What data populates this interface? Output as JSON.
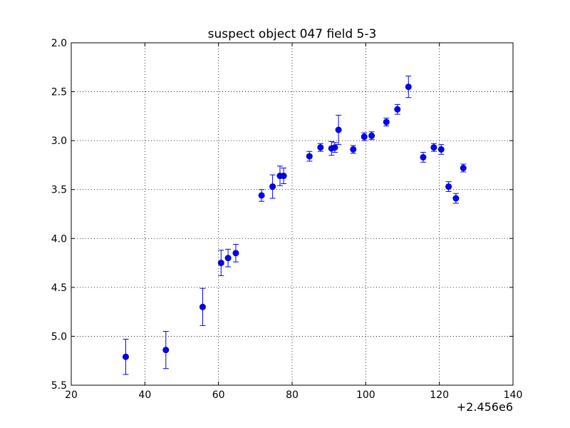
{
  "chart_data": {
    "type": "scatter",
    "title": "suspect object 047 field 5-3",
    "xlabel": "",
    "ylabel": "",
    "x_offset_label": "+2.456e6",
    "xlim": [
      20,
      140
    ],
    "ylim": [
      2.0,
      5.5
    ],
    "y_inverted": true,
    "x_ticks": [
      20,
      40,
      60,
      80,
      100,
      120,
      140
    ],
    "y_ticks": [
      2.0,
      2.5,
      3.0,
      3.5,
      4.0,
      4.5,
      5.0,
      5.5
    ],
    "x_tick_labels": [
      "20",
      "40",
      "60",
      "80",
      "100",
      "120",
      "140"
    ],
    "y_tick_labels": [
      "2.0",
      "2.5",
      "3.0",
      "3.5",
      "4.0",
      "4.5",
      "5.0",
      "5.5"
    ],
    "grid": true,
    "grid_style": "dotted",
    "marker_color": "#0000ff",
    "series": [
      {
        "points": [
          {
            "x": 34.8,
            "y": 5.21,
            "err": 0.18
          },
          {
            "x": 45.7,
            "y": 5.14,
            "err": 0.19
          },
          {
            "x": 55.7,
            "y": 4.7,
            "err": 0.19
          },
          {
            "x": 60.7,
            "y": 4.25,
            "err": 0.13
          },
          {
            "x": 62.6,
            "y": 4.2,
            "err": 0.09
          },
          {
            "x": 64.7,
            "y": 4.15,
            "err": 0.09
          },
          {
            "x": 71.7,
            "y": 3.56,
            "err": 0.06
          },
          {
            "x": 74.7,
            "y": 3.47,
            "err": 0.12
          },
          {
            "x": 76.7,
            "y": 3.36,
            "err": 0.1
          },
          {
            "x": 77.7,
            "y": 3.36,
            "err": 0.08
          },
          {
            "x": 84.7,
            "y": 3.16,
            "err": 0.05
          },
          {
            "x": 87.7,
            "y": 3.07,
            "err": 0.04
          },
          {
            "x": 90.7,
            "y": 3.08,
            "err": 0.07
          },
          {
            "x": 91.6,
            "y": 3.07,
            "err": 0.05
          },
          {
            "x": 92.6,
            "y": 2.89,
            "err": 0.15
          },
          {
            "x": 96.6,
            "y": 3.09,
            "err": 0.04
          },
          {
            "x": 99.6,
            "y": 2.96,
            "err": 0.04
          },
          {
            "x": 101.6,
            "y": 2.95,
            "err": 0.04
          },
          {
            "x": 105.6,
            "y": 2.81,
            "err": 0.04
          },
          {
            "x": 108.6,
            "y": 2.68,
            "err": 0.05
          },
          {
            "x": 111.6,
            "y": 2.45,
            "err": 0.11
          },
          {
            "x": 115.6,
            "y": 3.17,
            "err": 0.05
          },
          {
            "x": 118.5,
            "y": 3.07,
            "err": 0.04
          },
          {
            "x": 120.5,
            "y": 3.09,
            "err": 0.05
          },
          {
            "x": 122.5,
            "y": 3.47,
            "err": 0.05
          },
          {
            "x": 124.5,
            "y": 3.59,
            "err": 0.05
          },
          {
            "x": 126.5,
            "y": 3.28,
            "err": 0.04
          }
        ]
      }
    ]
  }
}
